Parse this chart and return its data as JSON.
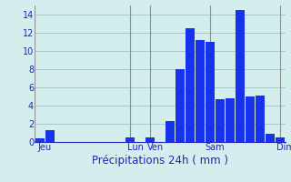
{
  "title": "Précipitations 24h ( mm )",
  "background_color": "#d4eeee",
  "bar_color": "#1833ee",
  "grid_color": "#a8c8c8",
  "text_color": "#2222bb",
  "vline_color": "#909090",
  "ylim": [
    0,
    15
  ],
  "yticks": [
    0,
    2,
    4,
    6,
    8,
    10,
    12,
    14
  ],
  "bar_values": [
    0.4,
    1.3,
    0,
    0,
    0,
    0,
    0,
    0,
    0,
    0.5,
    0,
    0.5,
    0,
    2.3,
    8.0,
    12.5,
    11.2,
    11.0,
    4.7,
    4.8,
    14.5,
    5.0,
    5.1,
    0.9,
    0.5
  ],
  "n_bars": 25,
  "day_labels": [
    "Jeu",
    "Lun",
    "Ven",
    "Sam",
    "Dim"
  ],
  "day_tick_positions": [
    0.5,
    9.5,
    11.5,
    17.5,
    24.5
  ],
  "day_vline_positions": [
    -0.5,
    9.0,
    11.0,
    17.0,
    24.0
  ],
  "xlabel_fontsize": 8.5,
  "ytick_fontsize": 7,
  "xtick_fontsize": 7
}
